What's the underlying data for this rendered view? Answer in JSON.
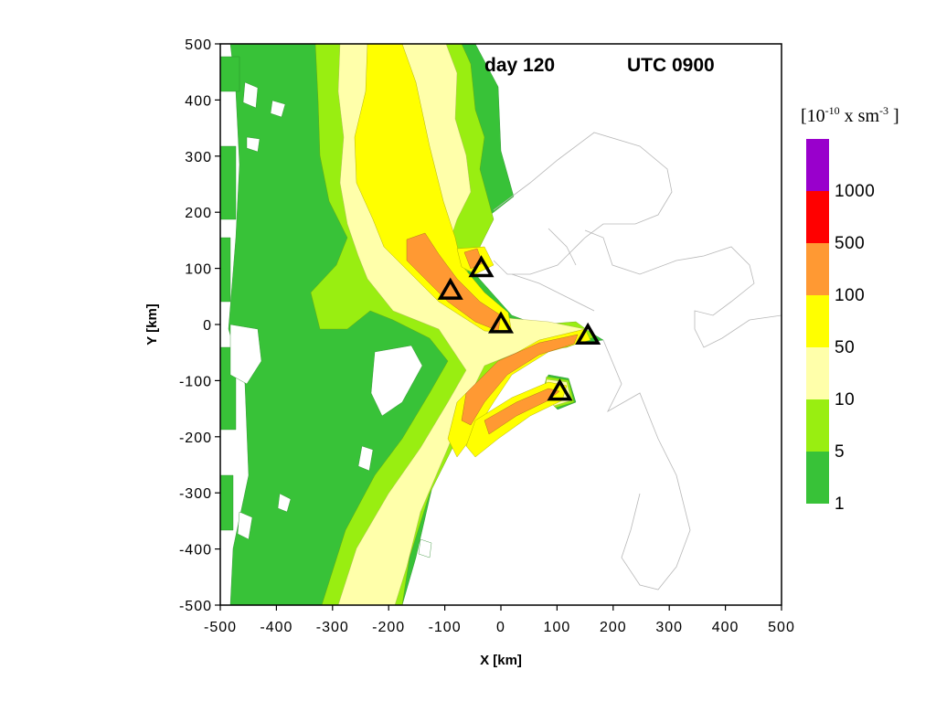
{
  "chart_data": {
    "type": "heatmap",
    "title_day": "day 120",
    "title_time": "UTC 0900",
    "xlabel": "X [km]",
    "ylabel": "Y [km]",
    "xlim": [
      -500,
      500
    ],
    "ylim": [
      -500,
      500
    ],
    "xticks": [
      "-500",
      "-400",
      "-300",
      "-200",
      "-100",
      "0",
      "100",
      "200",
      "300",
      "400",
      "500"
    ],
    "yticks": [
      "500",
      "400",
      "300",
      "200",
      "100",
      "0",
      "-100",
      "-200",
      "-300",
      "-400",
      "-500"
    ],
    "grid": false,
    "legend_position": "right",
    "colorbar": {
      "unit_prefix": "[10",
      "unit_exp1": "-10",
      "unit_mid": " x sm",
      "unit_exp2": "-3",
      "unit_suffix": " ]",
      "levels": [
        "1",
        "5",
        "10",
        "50",
        "100",
        "500",
        "1000"
      ],
      "colors": [
        "#38c238",
        "#99ee11",
        "#ffffaa",
        "#ffff00",
        "#ff9933",
        "#ff0000",
        "#9900cc"
      ]
    },
    "sources": [
      {
        "x": -35,
        "y": 100
      },
      {
        "x": -90,
        "y": 60
      },
      {
        "x": 0,
        "y": 0
      },
      {
        "x": 155,
        "y": -20
      },
      {
        "x": 105,
        "y": -120
      }
    ]
  }
}
